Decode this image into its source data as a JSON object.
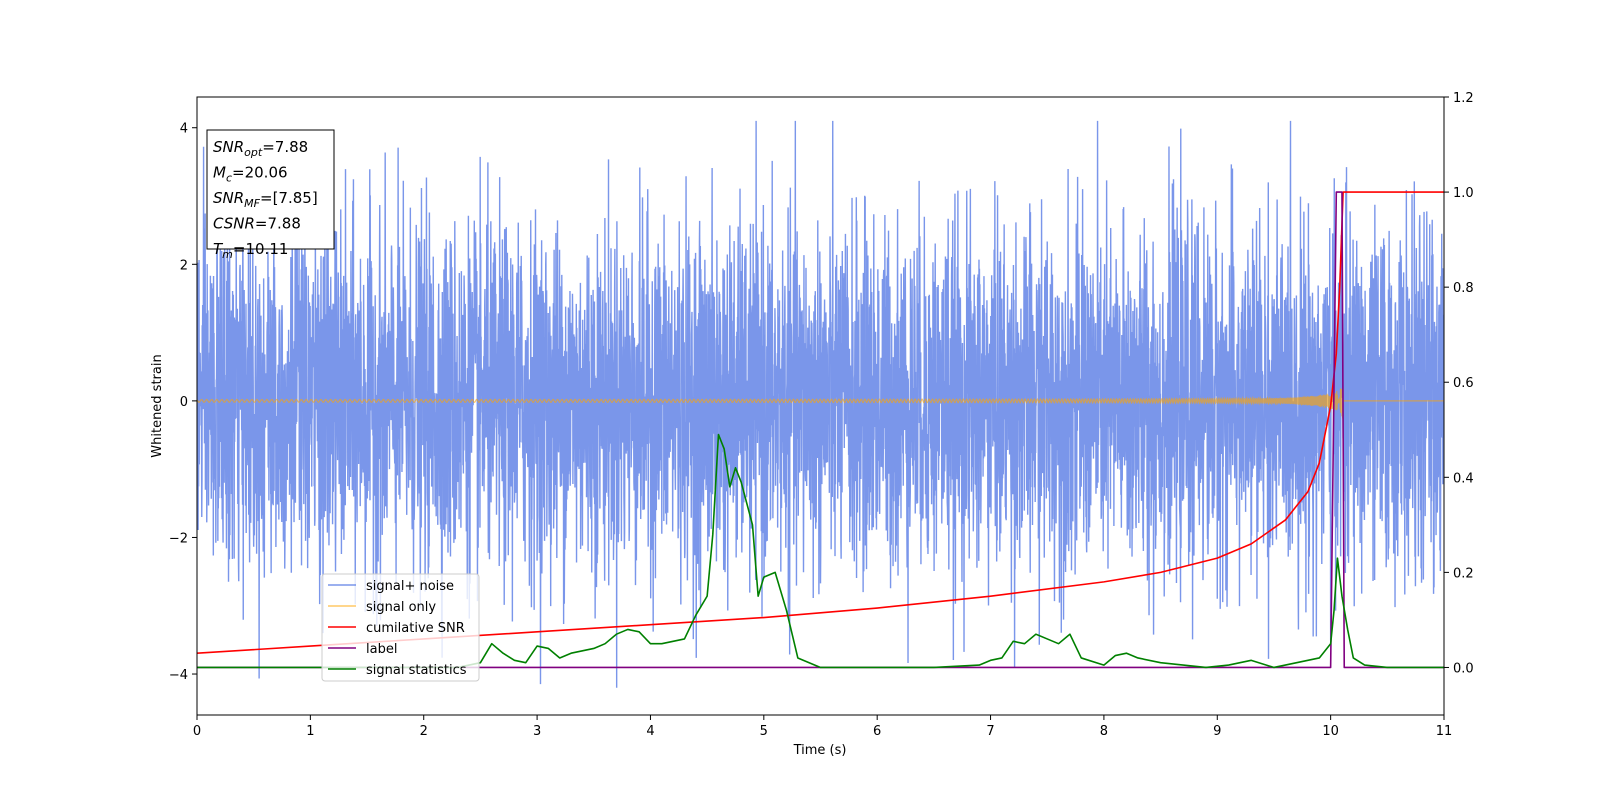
{
  "chart_data": {
    "type": "line",
    "xlabel": "Time (s)",
    "ylabel": "Whitened strain",
    "xlim": [
      0,
      11
    ],
    "ylim_left": [
      -4.6,
      4.45
    ],
    "ylim_right": [
      -0.1,
      1.2
    ],
    "xticks": [
      0,
      1,
      2,
      3,
      4,
      5,
      6,
      7,
      8,
      9,
      10,
      11
    ],
    "yticks_left": [
      -4,
      -2,
      0,
      2,
      4
    ],
    "yticks_right": [
      0.0,
      0.2,
      0.4,
      0.6,
      0.8,
      1.0,
      1.2
    ],
    "legend_placement": "lower-left",
    "grid": false,
    "annotation": [
      {
        "base": "SNR",
        "sub": "opt",
        "value": "=7.88"
      },
      {
        "base": "M",
        "sub": "c",
        "value": "=20.06"
      },
      {
        "base": "SNR",
        "sub": "MF",
        "value": "=[7.85]"
      },
      {
        "base": "CSNR",
        "sub": "",
        "value": "=7.88"
      },
      {
        "base": "T",
        "sub": "m",
        "value": "=10.11"
      }
    ],
    "series": [
      {
        "name": "signal+ noise",
        "axis": "left",
        "color": "#4169e1",
        "description_only": false,
        "noise_amplitude": 1.25,
        "duration": 11
      },
      {
        "name": "signal only",
        "axis": "left",
        "color": "#ffa500",
        "chirp_end": 10.11
      },
      {
        "name": "cumilative SNR",
        "axis": "right",
        "color": "#ff0000",
        "x": [
          0,
          1,
          2,
          3,
          4,
          5,
          6,
          7,
          8,
          8.5,
          9,
          9.3,
          9.6,
          9.8,
          9.9,
          10.0,
          10.05,
          10.08,
          10.11,
          10.15,
          11
        ],
        "y": [
          0.03,
          0.045,
          0.06,
          0.075,
          0.09,
          0.105,
          0.125,
          0.15,
          0.18,
          0.2,
          0.23,
          0.26,
          0.31,
          0.37,
          0.43,
          0.55,
          0.66,
          0.8,
          1.0,
          1.0,
          1.0
        ]
      },
      {
        "name": "label",
        "axis": "right",
        "color": "#800080",
        "x": [
          0,
          9.99,
          10.0,
          10.05,
          10.1,
          10.12,
          11
        ],
        "y": [
          0.0,
          0.0,
          0.0,
          1.0,
          1.0,
          0.0,
          0.0
        ]
      },
      {
        "name": "signal statistics",
        "axis": "right",
        "color": "#008000",
        "x": [
          0,
          1.0,
          1.5,
          2.0,
          2.3,
          2.5,
          2.6,
          2.7,
          2.8,
          2.9,
          3.0,
          3.1,
          3.2,
          3.3,
          3.4,
          3.5,
          3.6,
          3.7,
          3.8,
          3.9,
          4.0,
          4.1,
          4.2,
          4.3,
          4.4,
          4.5,
          4.55,
          4.6,
          4.65,
          4.7,
          4.75,
          4.8,
          4.9,
          4.95,
          5.0,
          5.1,
          5.2,
          5.3,
          5.5,
          6.0,
          6.5,
          6.9,
          7.0,
          7.1,
          7.2,
          7.3,
          7.4,
          7.5,
          7.6,
          7.7,
          7.8,
          8.0,
          8.1,
          8.2,
          8.3,
          8.5,
          8.7,
          8.9,
          9.1,
          9.3,
          9.5,
          9.7,
          9.9,
          10.0,
          10.03,
          10.06,
          10.1,
          10.15,
          10.2,
          10.3,
          10.5,
          11
        ],
        "y": [
          0.0,
          0.0,
          0.0,
          0.0,
          0.0,
          0.01,
          0.05,
          0.03,
          0.015,
          0.01,
          0.045,
          0.04,
          0.02,
          0.03,
          0.035,
          0.04,
          0.05,
          0.07,
          0.08,
          0.075,
          0.05,
          0.05,
          0.055,
          0.06,
          0.11,
          0.15,
          0.28,
          0.49,
          0.46,
          0.38,
          0.42,
          0.39,
          0.3,
          0.15,
          0.19,
          0.2,
          0.12,
          0.02,
          0.0,
          0.0,
          0.0,
          0.005,
          0.015,
          0.02,
          0.055,
          0.05,
          0.07,
          0.06,
          0.05,
          0.07,
          0.02,
          0.005,
          0.025,
          0.03,
          0.02,
          0.01,
          0.005,
          0.0,
          0.005,
          0.015,
          0.0,
          0.01,
          0.02,
          0.05,
          0.12,
          0.23,
          0.15,
          0.08,
          0.02,
          0.005,
          0.0,
          0.0
        ]
      }
    ]
  }
}
